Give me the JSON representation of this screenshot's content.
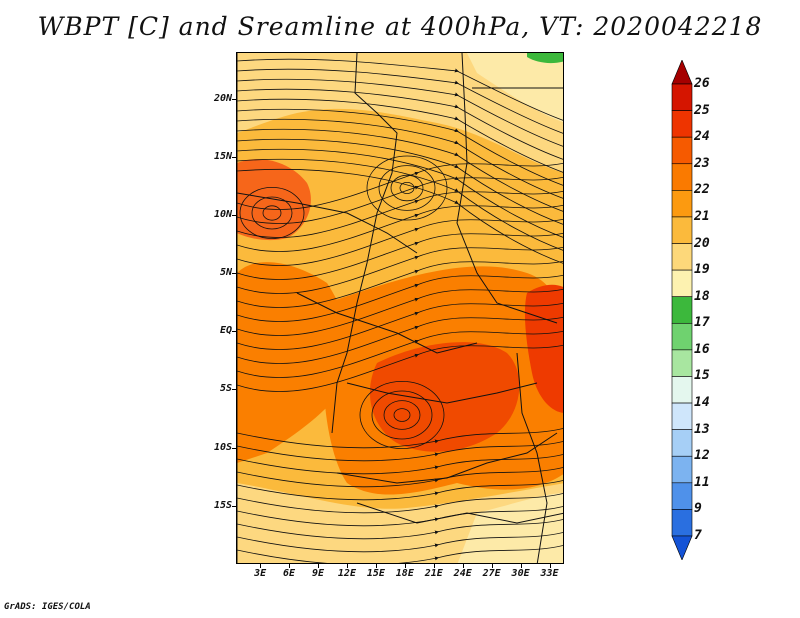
{
  "title": "WBPT [C] and Sreamline at 400hPa, VT: 2020042218",
  "credit": "GrADS: IGES/COLA",
  "map": {
    "variable": "WBPT [C]",
    "level": "400hPa",
    "valid_time": "2020042218",
    "lat_labels": [
      "20N",
      "15N",
      "10N",
      "5N",
      "EQ",
      "5S",
      "10S",
      "15S"
    ],
    "lon_labels": [
      "3E",
      "6E",
      "9E",
      "12E",
      "15E",
      "18E",
      "21E",
      "24E",
      "27E",
      "30E",
      "33E"
    ],
    "lat_values": [
      20,
      15,
      10,
      5,
      0,
      -5,
      -10,
      -15
    ],
    "lon_values": [
      3,
      6,
      9,
      12,
      15,
      18,
      21,
      24,
      27,
      30,
      33
    ],
    "lat_range": [
      -20,
      24
    ],
    "lon_range": [
      0.5,
      34.5
    ]
  },
  "colorbar": {
    "labels": [
      "26",
      "25",
      "24",
      "23",
      "22",
      "21",
      "20",
      "19",
      "18",
      "17",
      "16",
      "15",
      "14",
      "13",
      "12",
      "11",
      "9",
      "7"
    ],
    "colors": [
      "#a50000",
      "#d51500",
      "#ee3400",
      "#f65a00",
      "#fa7a00",
      "#fc9a10",
      "#fbba3c",
      "#fdd87a",
      "#fdf2b0",
      "#3cb83c",
      "#6fd26f",
      "#a8e6a0",
      "#e4f7ee",
      "#cfe6fb",
      "#a6cff6",
      "#7cb3f0",
      "#4f91ea",
      "#2a6fe0",
      "#1453d6"
    ]
  },
  "colors": {
    "orange_dark": "#f45a00",
    "orange_mid": "#fa7f00",
    "orange_light": "#fba62c",
    "yellow": "#fdd680",
    "pale": "#fdeaa8",
    "green": "#3cb83c"
  }
}
